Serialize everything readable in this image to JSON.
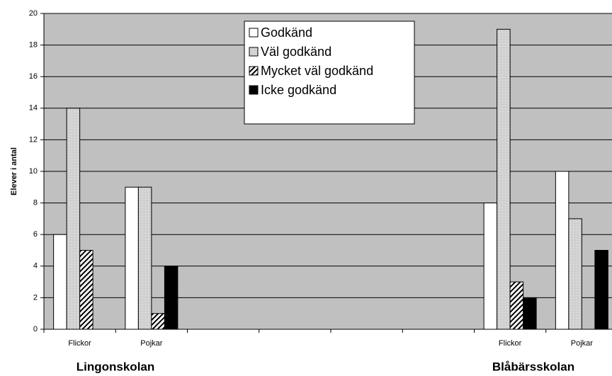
{
  "chart_data": {
    "type": "bar",
    "y_label": "Elever i antal",
    "categories": [
      "Flickor",
      "Pojkar",
      null,
      null,
      null,
      null,
      "Flickor",
      "Pojkar"
    ],
    "group_labels": [
      "Lingonskolan",
      "Blåbärsskolan"
    ],
    "series": [
      {
        "name": "Godkänd",
        "color": "#ffffff",
        "pattern": "none",
        "values": [
          6,
          9,
          null,
          null,
          null,
          null,
          8,
          10
        ]
      },
      {
        "name": "Väl godkänd",
        "color": "#d0d0d0",
        "pattern": "dots",
        "values": [
          14,
          9,
          null,
          null,
          null,
          null,
          19,
          7
        ]
      },
      {
        "name": "Mycket väl godkänd",
        "color": "#ffffff",
        "pattern": "hatch",
        "values": [
          5,
          1,
          null,
          null,
          null,
          null,
          3,
          null
        ]
      },
      {
        "name": "Icke godkänd",
        "color": "#000000",
        "pattern": "none",
        "values": [
          null,
          4,
          null,
          null,
          null,
          null,
          2,
          5
        ]
      }
    ],
    "ylim": [
      0,
      20
    ],
    "yticks": [
      0,
      2,
      4,
      6,
      8,
      10,
      12,
      14,
      16,
      18,
      20
    ],
    "grid": true,
    "legend": "top"
  }
}
